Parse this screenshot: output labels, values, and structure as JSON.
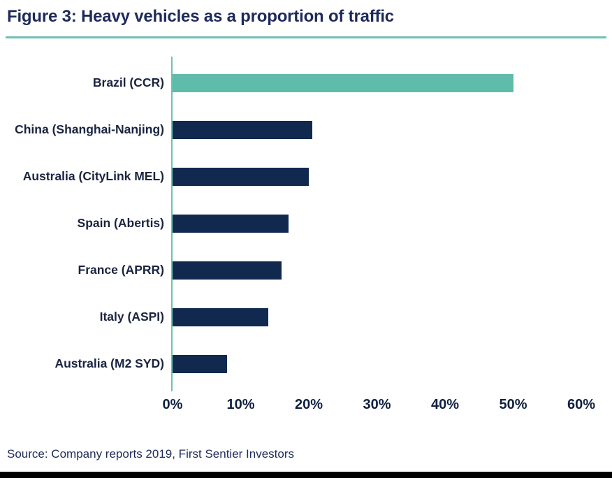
{
  "title": "Figure 3: Heavy vehicles as a proportion of traffic",
  "source": "Source: Company reports 2019, First Sentier Investors",
  "colors": {
    "title_text": "#1e2a5a",
    "accent_rule": "#6cc2b2",
    "axis_line": "#6cc2b2",
    "bar_default": "#12294f",
    "bar_highlight": "#5fbcab",
    "tick_text": "#10203f",
    "bottom_bar": "#000000"
  },
  "chart_data": {
    "type": "bar",
    "orientation": "horizontal",
    "title": "Figure 3: Heavy vehicles as a proportion of traffic",
    "categories": [
      "Brazil (CCR)",
      "China (Shanghai-Nanjing)",
      "Australia (CityLink MEL)",
      "Spain (Abertis)",
      "France (APRR)",
      "Italy (ASPI)",
      "Australia (M2 SYD)"
    ],
    "values": [
      50,
      20.5,
      20,
      17,
      16,
      14,
      8
    ],
    "bar_colors": [
      "#5fbcab",
      "#12294f",
      "#12294f",
      "#12294f",
      "#12294f",
      "#12294f",
      "#12294f"
    ],
    "xlabel": "",
    "ylabel": "",
    "xlim": [
      0,
      60
    ],
    "x_tick_values": [
      0,
      10,
      20,
      30,
      40,
      50,
      60
    ],
    "x_tick_labels": [
      "0%",
      "10%",
      "20%",
      "30%",
      "40%",
      "50%",
      "60%"
    ],
    "grid": false,
    "legend": false,
    "unit": "percent"
  }
}
